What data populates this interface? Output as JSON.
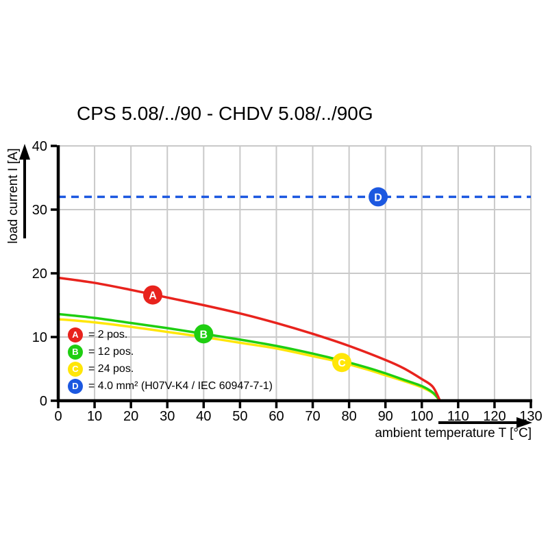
{
  "title": "CPS 5.08/../90 - CHDV 5.08/../90G",
  "axes": {
    "x": {
      "label": "ambient temperature T [°C]",
      "min": 0,
      "max": 130,
      "ticks": [
        0,
        10,
        20,
        30,
        40,
        50,
        60,
        70,
        80,
        90,
        100,
        110,
        120,
        130
      ]
    },
    "y": {
      "label": "load current I [A]",
      "min": 0,
      "max": 40,
      "ticks": [
        0,
        10,
        20,
        30,
        40
      ]
    }
  },
  "colors": {
    "red": "#e8231d",
    "green": "#1fce12",
    "yellow": "#ffe608",
    "blue": "#1c58e0",
    "grid": "#c9c9c9",
    "axis": "#000000"
  },
  "legend": [
    {
      "id": "A",
      "color_key": "red",
      "label": "= 2 pos."
    },
    {
      "id": "B",
      "color_key": "green",
      "label": "= 12 pos."
    },
    {
      "id": "C",
      "color_key": "yellow",
      "label": "= 24 pos."
    },
    {
      "id": "D",
      "color_key": "blue",
      "label": "= 4.0 mm² (H07V-K4 / IEC 60947-7-1)"
    }
  ],
  "chart_data": {
    "type": "line",
    "title": "CPS 5.08/../90 - CHDV 5.08/../90G",
    "xlabel": "ambient temperature T [°C]",
    "ylabel": "load current I [A]",
    "xlim": [
      0,
      130
    ],
    "ylim": [
      0,
      40
    ],
    "grid": true,
    "legend_position": "inside bottom-left",
    "series": [
      {
        "name": "D",
        "label": "4.0 mm² (H07V-K4 / IEC 60947-7-1)",
        "color_key": "blue",
        "style": "dashed",
        "points": [
          [
            0,
            32
          ],
          [
            130,
            32
          ]
        ],
        "marker": {
          "letter": "D",
          "x": 88,
          "y": 32
        }
      },
      {
        "name": "C",
        "label": "24 pos.",
        "color_key": "yellow",
        "style": "solid",
        "points": [
          [
            0,
            12.8
          ],
          [
            10,
            12.3
          ],
          [
            20,
            11.6
          ],
          [
            30,
            10.8
          ],
          [
            40,
            10.0
          ],
          [
            50,
            9.1
          ],
          [
            60,
            8.2
          ],
          [
            70,
            7.0
          ],
          [
            78,
            6.0
          ],
          [
            85,
            4.9
          ],
          [
            90,
            4.0
          ],
          [
            95,
            3.1
          ],
          [
            100,
            2.1
          ],
          [
            103,
            1.2
          ],
          [
            105,
            0
          ]
        ],
        "marker": {
          "letter": "C",
          "x": 78,
          "y": 6.0
        }
      },
      {
        "name": "B",
        "label": "12 pos.",
        "color_key": "green",
        "style": "solid",
        "points": [
          [
            0,
            13.6
          ],
          [
            10,
            13.0
          ],
          [
            20,
            12.2
          ],
          [
            30,
            11.4
          ],
          [
            40,
            10.5
          ],
          [
            50,
            9.6
          ],
          [
            60,
            8.6
          ],
          [
            70,
            7.4
          ],
          [
            78,
            6.3
          ],
          [
            85,
            5.2
          ],
          [
            90,
            4.3
          ],
          [
            95,
            3.3
          ],
          [
            100,
            2.3
          ],
          [
            103,
            1.3
          ],
          [
            105,
            0
          ]
        ],
        "marker": {
          "letter": "B",
          "x": 40,
          "y": 10.5
        }
      },
      {
        "name": "A",
        "label": "2 pos.",
        "color_key": "red",
        "style": "solid",
        "points": [
          [
            0,
            19.3
          ],
          [
            10,
            18.5
          ],
          [
            20,
            17.4
          ],
          [
            30,
            16.2
          ],
          [
            40,
            15.0
          ],
          [
            50,
            13.7
          ],
          [
            60,
            12.2
          ],
          [
            70,
            10.5
          ],
          [
            80,
            8.6
          ],
          [
            90,
            6.4
          ],
          [
            95,
            5.1
          ],
          [
            100,
            3.4
          ],
          [
            103,
            2.2
          ],
          [
            105,
            0
          ]
        ],
        "marker": {
          "letter": "A",
          "x": 26,
          "y": 16.6
        }
      }
    ]
  }
}
